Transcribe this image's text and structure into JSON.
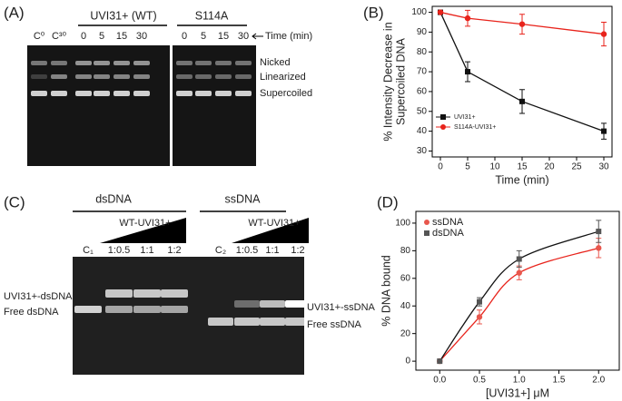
{
  "gel_a": {
    "label": "(A)",
    "groups": [
      "UVI31+ (WT)",
      "S114A"
    ],
    "time_label": "Time (min)",
    "lanes": [
      "C⁰",
      "C³⁰",
      "0",
      "5",
      "15",
      "30",
      "0",
      "5",
      "15",
      "30"
    ],
    "bands": [
      "Nicked",
      "Linearized",
      "Supercoiled"
    ]
  },
  "gel_c": {
    "label": "(C)",
    "groups": [
      "dsDNA",
      "ssDNA"
    ],
    "wedges": [
      "WT-UVI31+",
      "WT-UVI31+"
    ],
    "lanes": [
      "C₁",
      "1:0.5",
      "1:1",
      "1:2",
      "C₂",
      "1:0.5",
      "1:1",
      "1:2"
    ],
    "left_bands": [
      "UVI31+-dsDNA",
      "Free dsDNA"
    ],
    "right_bands": [
      "UVI31+-ssDNA",
      "Free ssDNA"
    ]
  },
  "chart_data": [
    {
      "type": "line",
      "label": "(B)",
      "xlabel": "Time (min)",
      "ylabel": [
        "% Intensity Decrease in",
        "Supercoiled DNA"
      ],
      "x": [
        0,
        5,
        15,
        30
      ],
      "series": [
        {
          "name": "UVI31+",
          "color": "#111111",
          "marker": "square",
          "values": [
            100,
            70,
            55,
            40
          ],
          "errors": [
            0,
            5,
            6,
            4
          ]
        },
        {
          "name": "S114A-UVI31+",
          "color": "#e8231b",
          "marker": "circle",
          "values": [
            100,
            97,
            94,
            89
          ],
          "errors": [
            0,
            4,
            5,
            6
          ]
        }
      ],
      "xlim": [
        -1.5,
        31.5
      ],
      "ylim": [
        27,
        103
      ],
      "xticks": [
        0,
        5,
        10,
        15,
        20,
        25,
        30
      ],
      "yticks": [
        30,
        40,
        50,
        60,
        70,
        80,
        90,
        100
      ],
      "legend": "lower left",
      "curve": "straight"
    },
    {
      "type": "line",
      "label": "(D)",
      "xlabel": "[UVI31+] μM",
      "ylabel": [
        "% DNA bound"
      ],
      "x": [
        0,
        0.5,
        1,
        2
      ],
      "series": [
        {
          "name": "ssDNA",
          "color": "#e8574d",
          "line_color": "#e8231b",
          "marker": "circle",
          "values": [
            0,
            32,
            64,
            82
          ],
          "errors": [
            0,
            5,
            5,
            7
          ]
        },
        {
          "name": "dsDNA",
          "color": "#555555",
          "line_color": "#111111",
          "marker": "square",
          "values": [
            0,
            43,
            74,
            94
          ],
          "errors": [
            0,
            3,
            6,
            8
          ]
        }
      ],
      "xlim": [
        -0.3,
        2.26
      ],
      "ylim": [
        -6.5,
        108.5
      ],
      "xticks": [
        {
          "value": 0,
          "label": "0.0"
        },
        {
          "value": 0.5,
          "label": "0.5"
        },
        {
          "value": 1,
          "label": "1.0"
        },
        {
          "value": 1.5,
          "label": "1.5"
        },
        {
          "value": 2,
          "label": "2.0"
        }
      ],
      "yticks": [
        0,
        20,
        40,
        60,
        80,
        100
      ],
      "legend": "upper left",
      "curve": "smooth"
    }
  ]
}
